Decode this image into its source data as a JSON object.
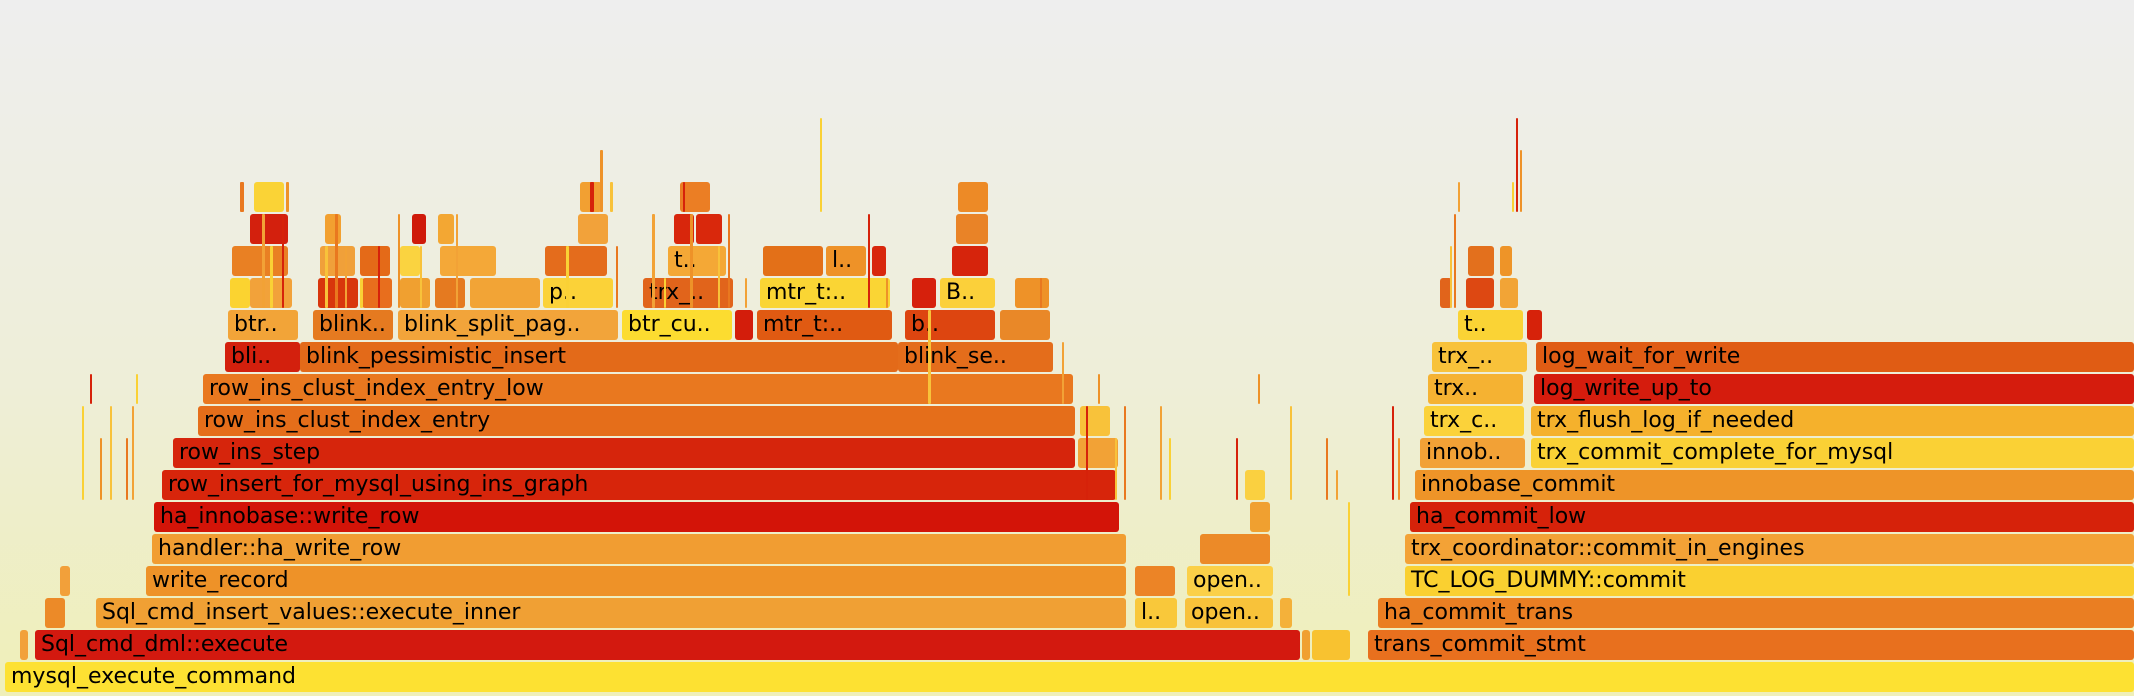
{
  "chart_data": {
    "type": "flamegraph",
    "total_samples": 2134,
    "frames": [
      {
        "label": "mysql_execute_command",
        "start": 5,
        "width": 2129,
        "depth": 0,
        "color": "#fde132"
      },
      {
        "label": "",
        "start": 20,
        "width": 8,
        "depth": 1,
        "color": "#f2a13a"
      },
      {
        "label": "Sql_cmd_dml::execute",
        "start": 35,
        "width": 1265,
        "depth": 1,
        "color": "#d3190f"
      },
      {
        "label": "",
        "start": 1302,
        "width": 8,
        "depth": 1,
        "color": "#f0a030"
      },
      {
        "label": "",
        "start": 1312,
        "width": 38,
        "depth": 1,
        "color": "#f8c230"
      },
      {
        "label": "trans_commit_stmt",
        "start": 1368,
        "width": 766,
        "depth": 1,
        "color": "#e8701e"
      },
      {
        "label": "",
        "start": 45,
        "width": 20,
        "depth": 2,
        "color": "#ec8a28"
      },
      {
        "label": "Sql_cmd_insert_values::execute_inner",
        "start": 96,
        "width": 1030,
        "depth": 2,
        "color": "#f0a034"
      },
      {
        "label": "l..",
        "start": 1135,
        "width": 42,
        "depth": 2,
        "color": "#f9c83a"
      },
      {
        "label": "open..",
        "start": 1185,
        "width": 88,
        "depth": 2,
        "color": "#f8c23a"
      },
      {
        "label": "",
        "start": 1280,
        "width": 12,
        "depth": 2,
        "color": "#f4b13a"
      },
      {
        "label": "ha_commit_trans",
        "start": 1378,
        "width": 756,
        "depth": 2,
        "color": "#ea7e22"
      },
      {
        "label": "",
        "start": 60,
        "width": 10,
        "depth": 3,
        "color": "#f2a03a"
      },
      {
        "label": "write_record",
        "start": 146,
        "width": 980,
        "depth": 3,
        "color": "#ee9228"
      },
      {
        "label": "",
        "start": 1135,
        "width": 40,
        "depth": 3,
        "color": "#ec8426"
      },
      {
        "label": "open..",
        "start": 1187,
        "width": 86,
        "depth": 3,
        "color": "#fbd048"
      },
      {
        "label": "TC_LOG_DUMMY::commit",
        "start": 1405,
        "width": 729,
        "depth": 3,
        "color": "#fad030"
      },
      {
        "label": "handler::ha_write_row",
        "start": 152,
        "width": 974,
        "depth": 4,
        "color": "#f19d32"
      },
      {
        "label": "",
        "start": 1200,
        "width": 70,
        "depth": 4,
        "color": "#ec8a28"
      },
      {
        "label": "trx_coordinator::commit_in_engines",
        "start": 1405,
        "width": 729,
        "depth": 4,
        "color": "#f3a236"
      },
      {
        "label": "ha_innobase::write_row",
        "start": 154,
        "width": 965,
        "depth": 5,
        "color": "#d31408"
      },
      {
        "label": "",
        "start": 1250,
        "width": 20,
        "depth": 5,
        "color": "#f0a030"
      },
      {
        "label": "ha_commit_low",
        "start": 1410,
        "width": 724,
        "depth": 5,
        "color": "#d6220a"
      },
      {
        "label": "row_insert_for_mysql_using_ins_graph",
        "start": 162,
        "width": 954,
        "depth": 6,
        "color": "#d7250b"
      },
      {
        "label": "",
        "start": 1245,
        "width": 20,
        "depth": 6,
        "color": "#fad040"
      },
      {
        "label": "innobase_commit",
        "start": 1415,
        "width": 719,
        "depth": 6,
        "color": "#ee9428"
      },
      {
        "label": "row_ins_step",
        "start": 173,
        "width": 902,
        "depth": 7,
        "color": "#d6250c"
      },
      {
        "label": "",
        "start": 1078,
        "width": 40,
        "depth": 7,
        "color": "#f2a236"
      },
      {
        "label": "innob..",
        "start": 1420,
        "width": 105,
        "depth": 7,
        "color": "#f2a136"
      },
      {
        "label": "trx_commit_complete_for_mysql",
        "start": 1531,
        "width": 603,
        "depth": 7,
        "color": "#fad135"
      },
      {
        "label": "row_ins_clust_index_entry",
        "start": 198,
        "width": 877,
        "depth": 8,
        "color": "#e56e1a"
      },
      {
        "label": "",
        "start": 1080,
        "width": 30,
        "depth": 8,
        "color": "#f8c23a"
      },
      {
        "label": "trx_c..",
        "start": 1424,
        "width": 100,
        "depth": 8,
        "color": "#fbd23a"
      },
      {
        "label": "trx_flush_log_if_needed",
        "start": 1531,
        "width": 603,
        "depth": 8,
        "color": "#f5b12c"
      },
      {
        "label": "row_ins_clust_index_entry_low",
        "start": 203,
        "width": 870,
        "depth": 9,
        "color": "#e9781f"
      },
      {
        "label": "trx..",
        "start": 1428,
        "width": 95,
        "depth": 9,
        "color": "#f5b232"
      },
      {
        "label": "log_write_up_to",
        "start": 1534,
        "width": 600,
        "depth": 9,
        "color": "#d51c0d"
      },
      {
        "label": "bli..",
        "start": 225,
        "width": 75,
        "depth": 10,
        "color": "#d3200d"
      },
      {
        "label": "blink_pessimistic_insert",
        "start": 300,
        "width": 598,
        "depth": 10,
        "color": "#e36a19"
      },
      {
        "label": "blink_se..",
        "start": 898,
        "width": 155,
        "depth": 10,
        "color": "#e46d1b"
      },
      {
        "label": "trx_..",
        "start": 1432,
        "width": 95,
        "depth": 10,
        "color": "#f8c23a"
      },
      {
        "label": "log_wait_for_write",
        "start": 1536,
        "width": 598,
        "depth": 10,
        "color": "#e05c14"
      },
      {
        "label": "btr..",
        "start": 228,
        "width": 70,
        "depth": 11,
        "color": "#f2a438"
      },
      {
        "label": "blink..",
        "start": 313,
        "width": 80,
        "depth": 11,
        "color": "#e57a20"
      },
      {
        "label": "blink_split_pag..",
        "start": 398,
        "width": 220,
        "depth": 11,
        "color": "#f2a43a"
      },
      {
        "label": "btr_cu..",
        "start": 622,
        "width": 110,
        "depth": 11,
        "color": "#fcdc30"
      },
      {
        "label": "",
        "start": 735,
        "width": 18,
        "depth": 11,
        "color": "#d31d0b"
      },
      {
        "label": "mtr_t:..",
        "start": 757,
        "width": 135,
        "depth": 11,
        "color": "#e05a12"
      },
      {
        "label": "b..",
        "start": 905,
        "width": 90,
        "depth": 11,
        "color": "#dd4510"
      },
      {
        "label": "",
        "start": 1000,
        "width": 50,
        "depth": 11,
        "color": "#e98828"
      },
      {
        "label": "t..",
        "start": 1458,
        "width": 65,
        "depth": 11,
        "color": "#fad335"
      },
      {
        "label": "",
        "start": 1527,
        "width": 15,
        "depth": 11,
        "color": "#d6220a"
      },
      {
        "label": "",
        "start": 230,
        "width": 20,
        "depth": 12,
        "color": "#fbd330"
      },
      {
        "label": "",
        "start": 250,
        "width": 42,
        "depth": 12,
        "color": "#f2a23a"
      },
      {
        "label": "",
        "start": 318,
        "width": 40,
        "depth": 12,
        "color": "#d8360c"
      },
      {
        "label": "",
        "start": 362,
        "width": 30,
        "depth": 12,
        "color": "#e86e1d"
      },
      {
        "label": "",
        "start": 400,
        "width": 30,
        "depth": 12,
        "color": "#f0a030"
      },
      {
        "label": "",
        "start": 435,
        "width": 30,
        "depth": 12,
        "color": "#e57a20"
      },
      {
        "label": "",
        "start": 470,
        "width": 70,
        "depth": 12,
        "color": "#f2a436"
      },
      {
        "label": "p..",
        "start": 543,
        "width": 70,
        "depth": 12,
        "color": "#fbd238"
      },
      {
        "label": "trx_..",
        "start": 643,
        "width": 90,
        "depth": 12,
        "color": "#e1641b"
      },
      {
        "label": "mtr_t:..",
        "start": 760,
        "width": 130,
        "depth": 12,
        "color": "#fad534"
      },
      {
        "label": "",
        "start": 912,
        "width": 24,
        "depth": 12,
        "color": "#d6200c"
      },
      {
        "label": "B..",
        "start": 940,
        "width": 55,
        "depth": 12,
        "color": "#fbd03a"
      },
      {
        "label": "",
        "start": 1015,
        "width": 34,
        "depth": 12,
        "color": "#ee9228"
      },
      {
        "label": "",
        "start": 1440,
        "width": 12,
        "depth": 12,
        "color": "#e1641b"
      },
      {
        "label": "",
        "start": 1466,
        "width": 28,
        "depth": 12,
        "color": "#dd4812"
      },
      {
        "label": "",
        "start": 1500,
        "width": 18,
        "depth": 12,
        "color": "#f2a436"
      },
      {
        "label": "",
        "start": 232,
        "width": 56,
        "depth": 13,
        "color": "#e98023"
      },
      {
        "label": "",
        "start": 320,
        "width": 35,
        "depth": 13,
        "color": "#f0a03a"
      },
      {
        "label": "",
        "start": 360,
        "width": 30,
        "depth": 13,
        "color": "#e46a18"
      },
      {
        "label": "",
        "start": 400,
        "width": 20,
        "depth": 13,
        "color": "#fad340"
      },
      {
        "label": "",
        "start": 440,
        "width": 56,
        "depth": 13,
        "color": "#f4a838"
      },
      {
        "label": "",
        "start": 545,
        "width": 62,
        "depth": 13,
        "color": "#e46c1c"
      },
      {
        "label": "t..",
        "start": 668,
        "width": 58,
        "depth": 13,
        "color": "#f4a836"
      },
      {
        "label": "",
        "start": 763,
        "width": 60,
        "depth": 13,
        "color": "#e37018"
      },
      {
        "label": "l..",
        "start": 826,
        "width": 40,
        "depth": 13,
        "color": "#ee9228"
      },
      {
        "label": "",
        "start": 872,
        "width": 14,
        "depth": 13,
        "color": "#d8270d"
      },
      {
        "label": "",
        "start": 952,
        "width": 36,
        "depth": 13,
        "color": "#d6240c"
      },
      {
        "label": "",
        "start": 1468,
        "width": 26,
        "depth": 13,
        "color": "#e3701d"
      },
      {
        "label": "",
        "start": 1500,
        "width": 12,
        "depth": 13,
        "color": "#ee9428"
      },
      {
        "label": "",
        "start": 250,
        "width": 38,
        "depth": 14,
        "color": "#d3200d"
      },
      {
        "label": "",
        "start": 325,
        "width": 16,
        "depth": 14,
        "color": "#f2a030"
      },
      {
        "label": "",
        "start": 412,
        "width": 14,
        "depth": 14,
        "color": "#cf1a0a"
      },
      {
        "label": "",
        "start": 438,
        "width": 16,
        "depth": 14,
        "color": "#f3a733"
      },
      {
        "label": "",
        "start": 578,
        "width": 30,
        "depth": 14,
        "color": "#f2a23a"
      },
      {
        "label": "",
        "start": 674,
        "width": 20,
        "depth": 14,
        "color": "#d8260c"
      },
      {
        "label": "",
        "start": 696,
        "width": 26,
        "depth": 14,
        "color": "#d9280c"
      },
      {
        "label": "",
        "start": 956,
        "width": 32,
        "depth": 14,
        "color": "#e98327"
      },
      {
        "label": "",
        "start": 254,
        "width": 30,
        "depth": 15,
        "color": "#fad336"
      },
      {
        "label": "",
        "start": 580,
        "width": 22,
        "depth": 15,
        "color": "#f2a032"
      },
      {
        "label": "",
        "start": 680,
        "width": 30,
        "depth": 15,
        "color": "#eb7e24"
      },
      {
        "label": "",
        "start": 958,
        "width": 30,
        "depth": 15,
        "color": "#ed8a26"
      }
    ]
  }
}
